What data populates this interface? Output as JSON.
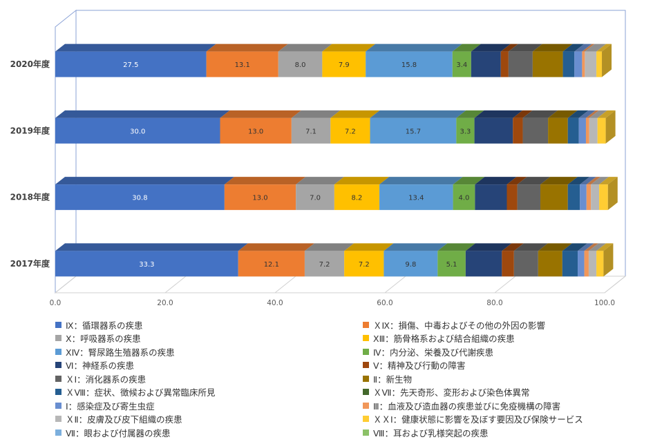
{
  "chart_data": {
    "type": "bar",
    "orientation": "horizontal",
    "stacked": true,
    "percent_stacked": true,
    "style": "3d",
    "categories": [
      "2020年度",
      "2019年度",
      "2018年度",
      "2017年度"
    ],
    "xlim": [
      0,
      100
    ],
    "x_ticks": [
      "0.0",
      "20.0",
      "40.0",
      "60.0",
      "80.0",
      "100.0"
    ],
    "grid": true,
    "legend_position": "bottom",
    "series": [
      {
        "name": "Ⅸ：循環器系の疾患",
        "color": "#4472c4",
        "values": [
          27.5,
          30.0,
          30.8,
          33.3
        ],
        "labels": [
          "27.5",
          "30.0",
          "30.8",
          "33.3"
        ]
      },
      {
        "name": "ＸⅨ：損傷、中毒およびその他の外因の影響",
        "color": "#ed7d31",
        "values": [
          13.1,
          13.0,
          13.0,
          12.1
        ],
        "labels": [
          "13.1",
          "13.0",
          "13.0",
          "12.1"
        ]
      },
      {
        "name": "Ⅹ：呼吸器系の疾患",
        "color": "#a5a5a5",
        "values": [
          8.0,
          7.1,
          7.0,
          7.2
        ],
        "labels": [
          "8.0",
          "7.1",
          "7.0",
          "7.2"
        ]
      },
      {
        "name": "ⅩⅢ：筋骨格系および結合組織の疾患",
        "color": "#ffc000",
        "values": [
          7.9,
          7.2,
          8.2,
          7.2
        ],
        "labels": [
          "7.9",
          "7.2",
          "8.2",
          "7.2"
        ]
      },
      {
        "name": "ⅩⅣ：腎尿路生殖器系の疾患",
        "color": "#5b9bd5",
        "values": [
          15.8,
          15.7,
          13.4,
          9.8
        ],
        "labels": [
          "15.8",
          "15.7",
          "13.4",
          "9.8"
        ]
      },
      {
        "name": "Ⅳ：内分泌、栄養及び代謝疾患",
        "color": "#70ad47",
        "values": [
          3.4,
          3.3,
          4.0,
          5.1
        ],
        "labels": [
          "3.4",
          "3.3",
          "4.0",
          "5.1"
        ]
      },
      {
        "name": "Ⅵ：神経系の疾患",
        "color": "#264478",
        "values": [
          5.4,
          7.0,
          5.8,
          6.6
        ],
        "labels": [
          "",
          "",
          "",
          ""
        ]
      },
      {
        "name": "Ⅴ：精神及び行動の障害",
        "color": "#9e480e",
        "values": [
          1.4,
          1.8,
          1.9,
          2.2
        ],
        "labels": [
          "",
          "",
          "",
          ""
        ]
      },
      {
        "name": "ＸⅠ：消化器系の疾患",
        "color": "#636363",
        "values": [
          4.4,
          4.6,
          4.2,
          4.4
        ],
        "labels": [
          "",
          "",
          "",
          ""
        ]
      },
      {
        "name": "Ⅱ：新生物",
        "color": "#997300",
        "values": [
          5.5,
          3.6,
          5.0,
          4.4
        ],
        "labels": [
          "",
          "",
          "",
          ""
        ]
      },
      {
        "name": "ＸⅧ：症状、徴候および異常臨床所見",
        "color": "#255e91",
        "values": [
          2.1,
          2.0,
          2.2,
          2.8
        ],
        "labels": [
          "",
          "",
          "",
          ""
        ]
      },
      {
        "name": "ＸⅦ：先天奇形、変形および染色体異常",
        "color": "#43682b",
        "values": [
          0.0,
          0.0,
          0.0,
          0.0
        ],
        "labels": [
          "",
          "",
          "",
          ""
        ]
      },
      {
        "name": "Ⅰ：感染症及び寄生虫症",
        "color": "#698ed0",
        "values": [
          1.4,
          1.3,
          1.2,
          1.2
        ],
        "labels": [
          "",
          "",
          "",
          ""
        ]
      },
      {
        "name": "Ⅲ：血液及び造血器の疾患並びに免疫機構の障害",
        "color": "#f1975a",
        "values": [
          0.5,
          0.6,
          0.8,
          0.8
        ],
        "labels": [
          "",
          "",
          "",
          ""
        ]
      },
      {
        "name": "ＸⅡ：皮膚及び皮下組織の疾患",
        "color": "#b7b7b7",
        "values": [
          2.1,
          1.5,
          1.5,
          1.4
        ],
        "labels": [
          "",
          "",
          "",
          ""
        ]
      },
      {
        "name": "ＸＸⅠ：健康状態に影響を及ぼす要因及び保険サービス",
        "color": "#ffcd33",
        "values": [
          1.0,
          1.5,
          1.6,
          1.3
        ],
        "labels": [
          "",
          "",
          "",
          ""
        ]
      },
      {
        "name": "Ⅶ：眼および付属器の疾患",
        "color": "#7cafdd",
        "values": [
          0.0,
          0.0,
          0.0,
          0.0
        ],
        "labels": [
          "",
          "",
          "",
          ""
        ]
      },
      {
        "name": "Ⅷ：耳および乳様突起の疾患",
        "color": "#8cc168",
        "values": [
          0.0,
          0.0,
          0.0,
          0.0
        ],
        "labels": [
          "",
          "",
          "",
          ""
        ]
      }
    ]
  }
}
